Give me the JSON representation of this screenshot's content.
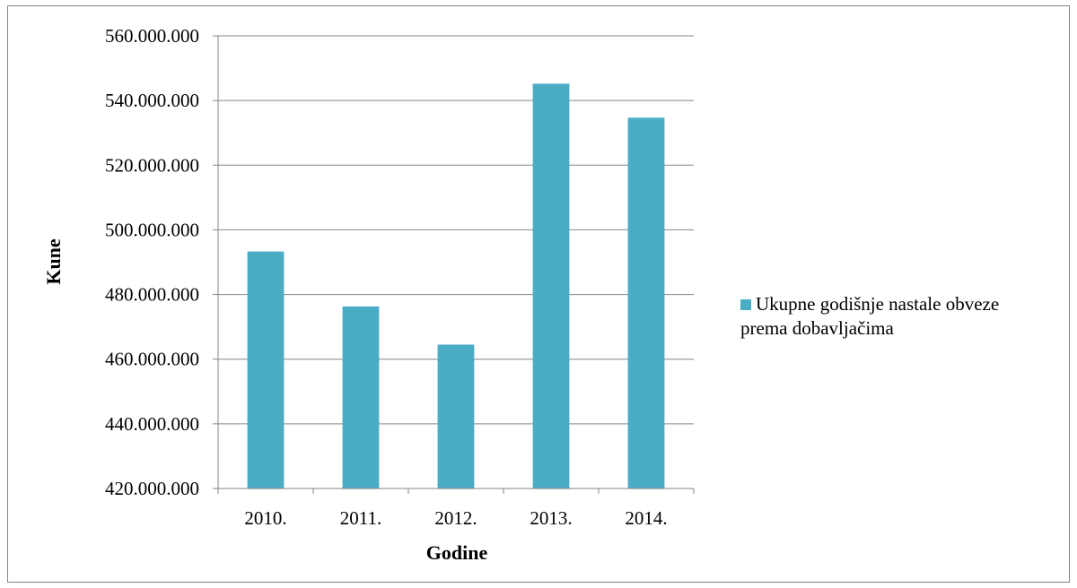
{
  "chart_data": {
    "type": "bar",
    "categories": [
      "2010.",
      "2011.",
      "2012.",
      "2013.",
      "2014."
    ],
    "series": [
      {
        "name": "Ukupne godišnje nastale obveze prema dobavljačima",
        "values": [
          493300000,
          476300000,
          464500000,
          545200000,
          534700000
        ],
        "color": "#4BACC6"
      }
    ],
    "ylim": [
      420000000,
      560000000
    ],
    "yticks": [
      "420.000.000",
      "440.000.000",
      "460.000.000",
      "480.000.000",
      "500.000.000",
      "520.000.000",
      "540.000.000",
      "560.000.000"
    ],
    "ytick_values": [
      420000000,
      440000000,
      460000000,
      480000000,
      500000000,
      520000000,
      540000000,
      560000000
    ],
    "xlabel": "Godine",
    "ylabel": "Kune",
    "grid": true,
    "legend_position": "right",
    "legend": {
      "line1": "Ukupne godišnje nastale obveze",
      "line2": "prema dobavljačima"
    }
  }
}
